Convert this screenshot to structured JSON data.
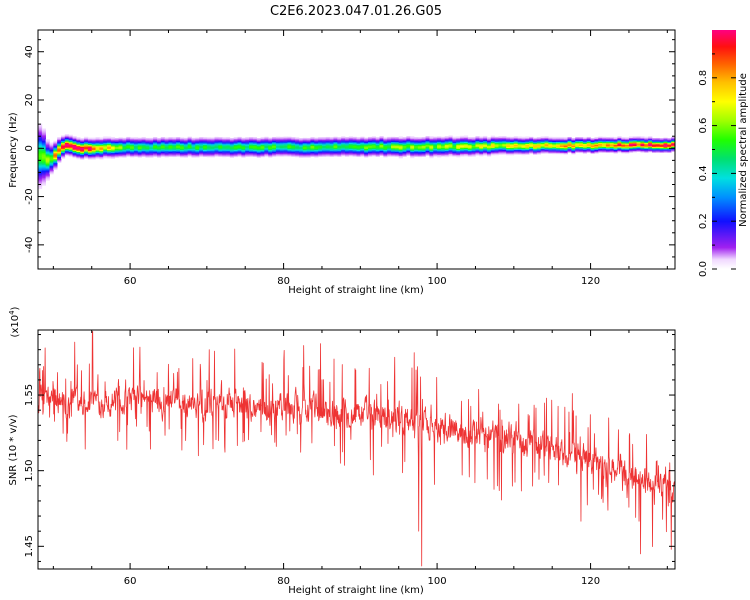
{
  "figure": {
    "title": "C2E6.2023.047.01.26.G05"
  },
  "chart_data": [
    {
      "type": "heatmap",
      "title": "C2E6.2023.047.01.26.G05",
      "xlabel": "Height of straight line (km)",
      "ylabel": "Frequency (Hz)",
      "xlim": [
        48,
        131
      ],
      "ylim": [
        -50,
        49
      ],
      "x_ticks": [
        60,
        80,
        100,
        120
      ],
      "y_ticks": [
        -40,
        -20,
        0,
        20,
        40
      ],
      "colorbar": {
        "label": "Normalized spectral amplitude",
        "range": [
          0,
          1
        ],
        "ticks": [
          0.0,
          0.2,
          0.4,
          0.6,
          0.8
        ],
        "colormap": "rainbow-violet-to-red"
      },
      "ridge": {
        "description_points": [
          {
            "x": 48.5,
            "center": -3,
            "halfwidth": 8,
            "peak": 0.45
          },
          {
            "x": 49.5,
            "center": -5,
            "halfwidth": 4,
            "peak": 0.55
          },
          {
            "x": 51.5,
            "center": 1.5,
            "halfwidth": 2.5,
            "peak": 0.95
          },
          {
            "x": 53.5,
            "center": 0,
            "halfwidth": 2.5,
            "peak": 0.95
          },
          {
            "x": 60,
            "center": 0.5,
            "halfwidth": 2.5,
            "peak": 0.45
          },
          {
            "x": 80,
            "center": 0.5,
            "halfwidth": 2.5,
            "peak": 0.45
          },
          {
            "x": 100,
            "center": 0.8,
            "halfwidth": 2.5,
            "peak": 0.55
          },
          {
            "x": 115,
            "center": 1.2,
            "halfwidth": 2.0,
            "peak": 0.7
          },
          {
            "x": 131,
            "center": 1.5,
            "halfwidth": 1.8,
            "peak": 0.95
          }
        ]
      },
      "grid": false
    },
    {
      "type": "line",
      "xlabel": "Height of straight line (km)",
      "ylabel": "SNR (10 * v/v)",
      "y_multiplier": "(x10",
      "y_multiplier_exp": "4",
      "y_multiplier_close": ")",
      "xlim": [
        48,
        131
      ],
      "ylim": [
        1.435,
        1.593
      ],
      "x_ticks": [
        60,
        80,
        100,
        120
      ],
      "y_ticks": [
        1.45,
        1.5,
        1.55
      ],
      "y_tick_labels": [
        "1.45",
        "1.50",
        "1.55"
      ],
      "series": [
        {
          "color": "#ee3333",
          "trend": [
            {
              "x": 48,
              "y": 1.545
            },
            {
              "x": 60,
              "y": 1.547
            },
            {
              "x": 75,
              "y": 1.543
            },
            {
              "x": 90,
              "y": 1.538
            },
            {
              "x": 100,
              "y": 1.53
            },
            {
              "x": 110,
              "y": 1.522
            },
            {
              "x": 120,
              "y": 1.508
            },
            {
              "x": 131,
              "y": 1.485
            }
          ],
          "noise_amplitude": 0.03,
          "notable_dips": [
            {
              "x": 98.0,
              "y": 1.437
            },
            {
              "x": 97.6,
              "y": 1.46
            },
            {
              "x": 126.5,
              "y": 1.445
            },
            {
              "x": 130.5,
              "y": 1.448
            }
          ],
          "notable_peaks": [
            {
              "x": 55.1,
              "y": 1.592
            },
            {
              "x": 52.8,
              "y": 1.585
            },
            {
              "x": 84.8,
              "y": 1.584
            },
            {
              "x": 97.0,
              "y": 1.578
            },
            {
              "x": 71.0,
              "y": 1.579
            }
          ]
        }
      ],
      "grid": false
    }
  ]
}
